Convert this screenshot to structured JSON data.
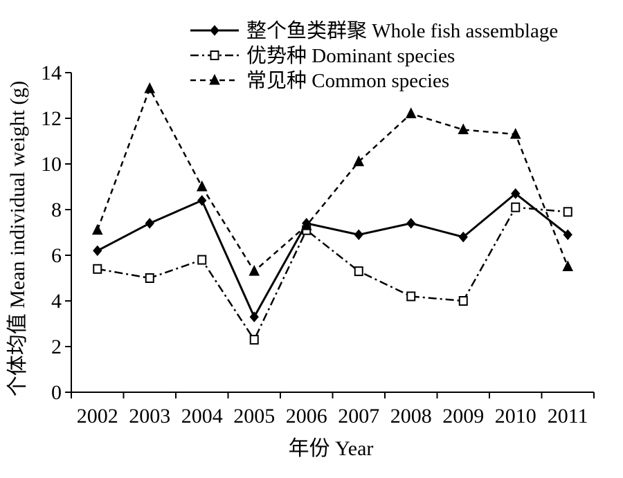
{
  "chart_data": {
    "type": "line",
    "categories": [
      "2002",
      "2003",
      "2004",
      "2005",
      "2006",
      "2007",
      "2008",
      "2009",
      "2010",
      "2011"
    ],
    "series": [
      {
        "name": "整个鱼类群聚 Whole fish assemblage",
        "values": [
          6.2,
          7.4,
          8.4,
          3.3,
          7.4,
          6.9,
          7.4,
          6.8,
          8.7,
          6.9
        ],
        "line_style": "solid",
        "marker": "diamond",
        "color": "#000000"
      },
      {
        "name": "优势种 Dominant species",
        "values": [
          5.4,
          5.0,
          5.8,
          2.3,
          7.1,
          5.3,
          4.2,
          4.0,
          8.1,
          7.9
        ],
        "line_style": "dash-dot",
        "marker": "open-square",
        "color": "#000000"
      },
      {
        "name": "常见种 Common species",
        "values": [
          7.1,
          13.3,
          9.0,
          5.3,
          7.3,
          10.1,
          12.2,
          11.5,
          11.3,
          5.5
        ],
        "line_style": "dashed",
        "marker": "triangle",
        "color": "#000000"
      }
    ],
    "xlabel": "年份 Year",
    "ylabel": "个体均值 Mean individual weight (g)",
    "ylim": [
      0,
      14
    ],
    "yticks": [
      "0",
      "2",
      "4",
      "6",
      "8",
      "10",
      "12",
      "14"
    ],
    "grid": false,
    "legend_position": "top-right"
  }
}
